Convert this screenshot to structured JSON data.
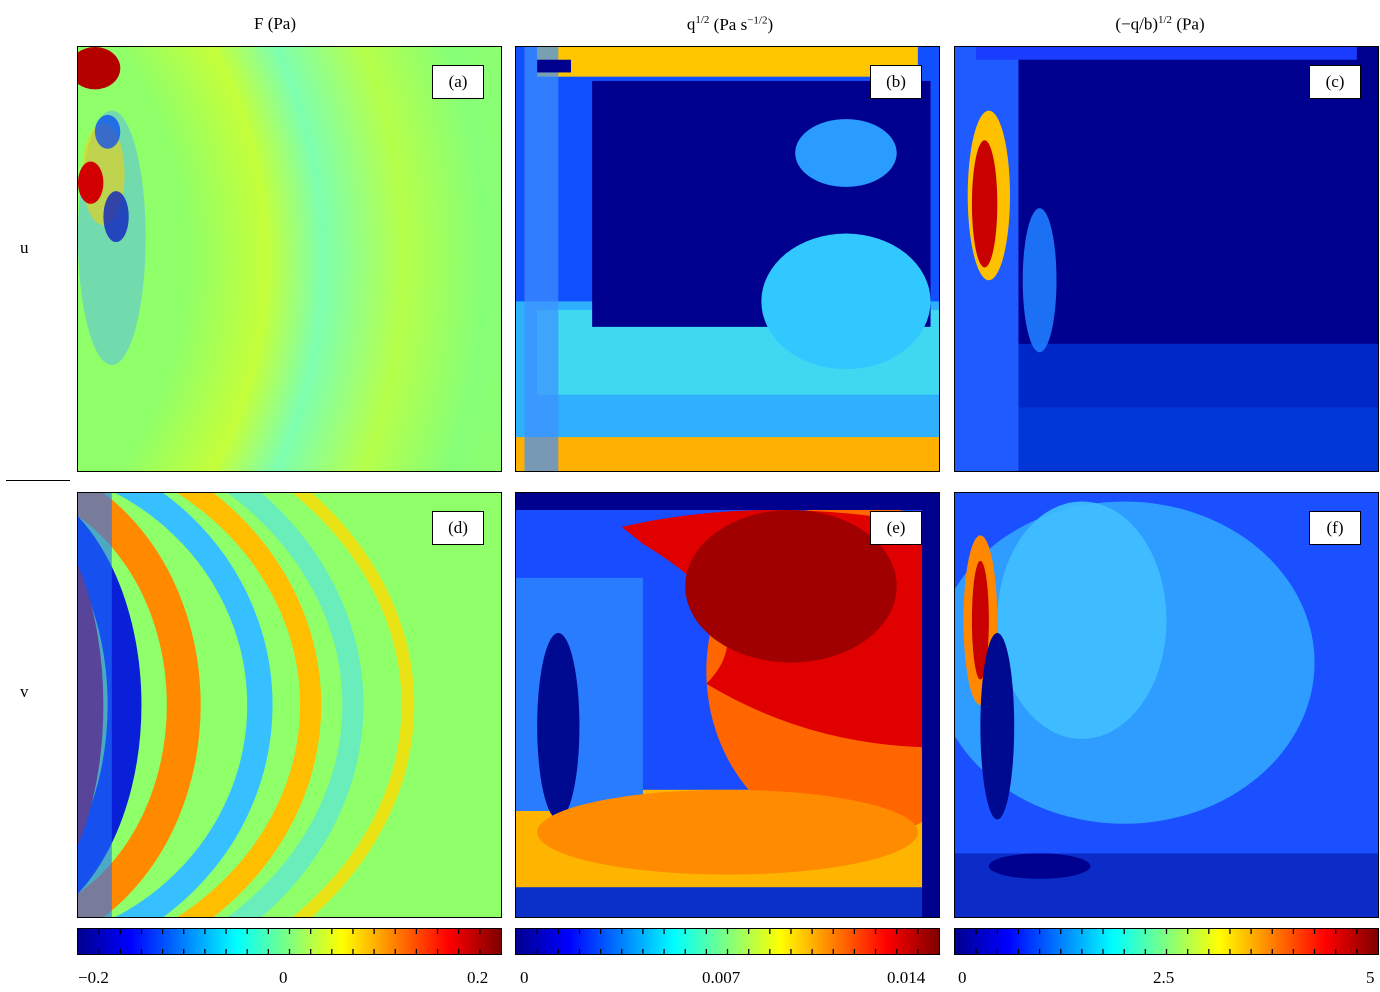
{
  "columns": [
    {
      "title_main": "F (Pa)",
      "title_pre": "",
      "title_sup": "",
      "title_post": ""
    },
    {
      "title_main": "",
      "title_pre": "q",
      "title_sup": "1/2",
      "title_post": " (Pa s⁻¹ᐟ²)"
    },
    {
      "title_main": "",
      "title_pre": "(−q/b)",
      "title_sup": "1/2",
      "title_post": " (Pa)"
    }
  ],
  "rows": [
    {
      "label": "u"
    },
    {
      "label": "v"
    }
  ],
  "panel_labels": [
    "(a)",
    "(b)",
    "(c)",
    "(d)",
    "(e)",
    "(f)"
  ],
  "colorbars": [
    {
      "ticks": [
        "−0.2",
        "0",
        "0.2"
      ],
      "min": -0.2,
      "max": 0.2
    },
    {
      "ticks": [
        "0",
        "0.007",
        "0.014"
      ],
      "min": 0,
      "max": 0.014
    },
    {
      "ticks": [
        "0",
        "2.5",
        "5"
      ],
      "min": 0,
      "max": 5
    }
  ],
  "colormap": "jet",
  "chart_data": {
    "type": "heatmap",
    "layout": "2 rows x 3 columns of heatmaps with shared colorbars per column",
    "panels": [
      {
        "id": "(a)",
        "row": "u",
        "column": "F (Pa)"
      },
      {
        "id": "(b)",
        "row": "u",
        "column": "q^{1/2} (Pa s^{-1/2})"
      },
      {
        "id": "(c)",
        "row": "u",
        "column": "(-q/b)^{1/2} (Pa)"
      },
      {
        "id": "(d)",
        "row": "v",
        "column": "F (Pa)"
      },
      {
        "id": "(e)",
        "row": "v",
        "column": "q^{1/2} (Pa s^{-1/2})"
      },
      {
        "id": "(f)",
        "row": "v",
        "column": "(-q/b)^{1/2} (Pa)"
      }
    ],
    "colorbar_ranges": [
      [
        -0.2,
        0.2
      ],
      [
        0,
        0.014
      ],
      [
        0,
        5
      ]
    ]
  }
}
